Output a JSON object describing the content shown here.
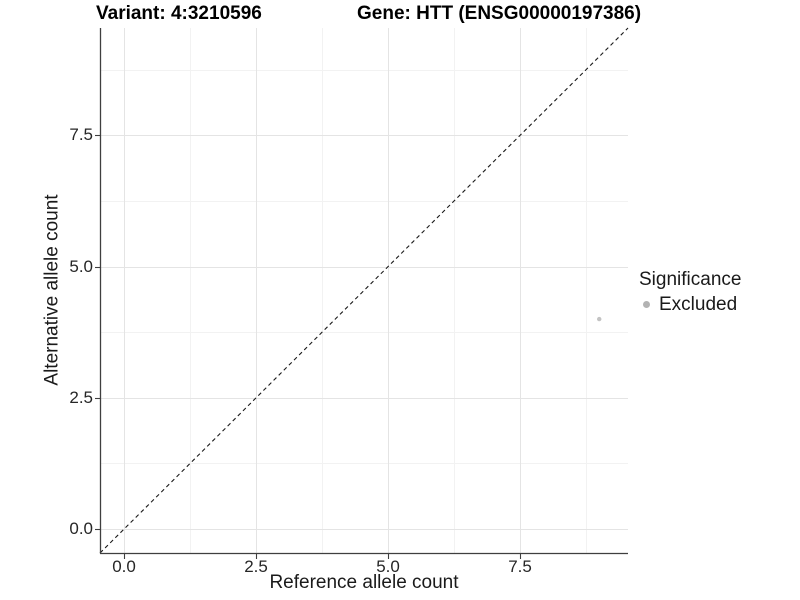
{
  "chart_data": {
    "type": "scatter",
    "title_left": "Variant: 4:3210596",
    "title_right": "Gene: HTT (ENSG00000197386)",
    "xlabel": "Reference allele count",
    "ylabel": "Alternative allele count",
    "xlim": [
      -0.455,
      9.545
    ],
    "ylim": [
      -0.455,
      9.545
    ],
    "x_ticks": {
      "values": [
        0,
        2.5,
        5,
        7.5
      ],
      "labels": [
        "0.0",
        "2.5",
        "5.0",
        "7.5"
      ]
    },
    "y_ticks": {
      "values": [
        0,
        2.5,
        5,
        7.5
      ],
      "labels": [
        "0.0",
        "2.5",
        "5.0",
        "7.5"
      ]
    },
    "x_minor": [
      1.25,
      3.75,
      6.25,
      8.75
    ],
    "y_minor": [
      1.25,
      3.75,
      6.25,
      8.75
    ],
    "grid": "major+minor",
    "points": [
      {
        "x": 9,
        "y": 4,
        "significance": "Excluded"
      }
    ],
    "identity_line": {
      "slope": 1,
      "intercept": 0,
      "style": "dashed"
    },
    "legend": {
      "position": "right",
      "title": "Significance",
      "items": [
        {
          "label": "Excluded",
          "color": "#b3b3b3"
        }
      ]
    }
  },
  "colors": {
    "background": "#ffffff",
    "text": "#1a1a1a",
    "axis_line": "#3f3f3f",
    "grid_major": "#e4e4e4",
    "grid_minor": "#f2f2f2",
    "point": "#c3c3c3",
    "identity_line": "#1a1a1a"
  }
}
